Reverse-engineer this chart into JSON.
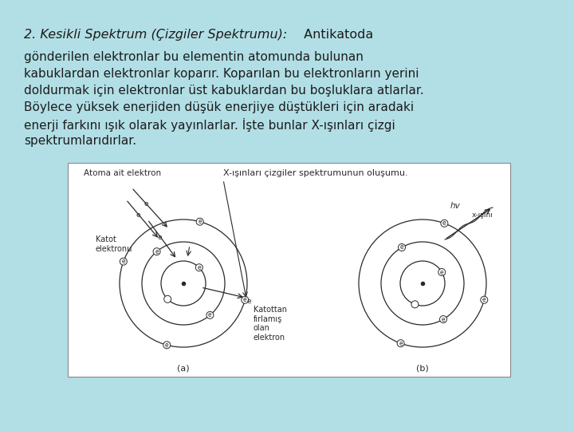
{
  "bg_color": "#b2dfe6",
  "white_box_color": "#ffffff",
  "title_italic": "2. Kesikli Spektrum (Çizgiler Spektrumu):",
  "title_normal": " Antikatoda",
  "body_lines": [
    "gönderilen elektronlar bu elementin atomunda bulunan",
    "kabuklardan elektronlar koparır. Koparılan bu elektronların yerini",
    "doldurmak için elektronlar üst kabuklardan bu boşluklara atlarlar.",
    "Böylece yüksek enerjiden düşük enerjiye düştükleri için aradaki",
    "enerji farkını ışık olarak yayınlarlar. İşte bunlar X-ışınları çizgi",
    "spektrumlarıdırlar."
  ],
  "caption_left": "Atoma ait elektron",
  "caption_right": "X-ışınları çizgiler spektrumunun oluşumu.",
  "label_katot": "Katot\nelektronu",
  "label_katottan": "Katottan\nfırlamış\nolan\nelektron",
  "label_a": "(a)",
  "label_b": "(b)",
  "label_hv": "hv",
  "label_x_isini": "x-ışını",
  "text_color": "#1c1c1c",
  "diagram_color": "#2a2a2a",
  "font_size_title": 11.5,
  "font_size_body": 11.0,
  "font_size_small": 7.5,
  "font_size_tiny": 6.5,
  "font_size_label_ab": 8.0
}
